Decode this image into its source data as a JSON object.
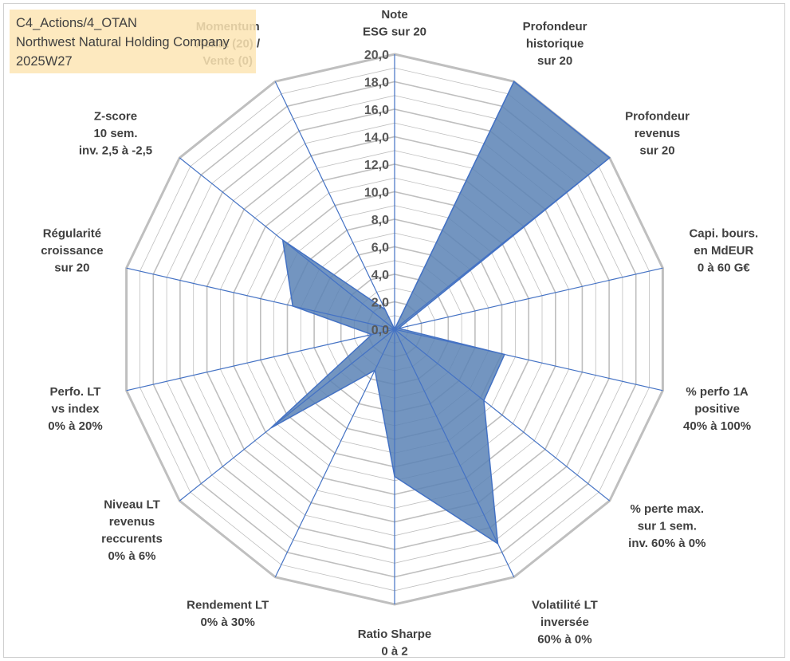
{
  "title_lines": [
    "C4_Actions/4_OTAN",
    "Northwest Natural Holding Company",
    "2025W27"
  ],
  "chart_data": {
    "type": "radar",
    "scale": [
      0,
      20
    ],
    "ticks": [
      "0,0",
      "2,0",
      "4,0",
      "6,0",
      "8,0",
      "10,0",
      "12,0",
      "14,0",
      "16,0",
      "18,0",
      "20,0"
    ],
    "categories": [
      [
        "Note",
        "ESG sur 20"
      ],
      [
        "Profondeur",
        "historique",
        "sur 20"
      ],
      [
        "Profondeur",
        "revenus",
        "sur 20"
      ],
      [
        "Capi. bours.",
        "en MdEUR",
        "0 à 60 G€"
      ],
      [
        "% perfo 1A",
        "positive",
        "40% à 100%"
      ],
      [
        "% perte max.",
        "sur 1 sem.",
        "inv. 60% à 0%"
      ],
      [
        "Volatilité LT",
        "inversée",
        "60% à 0%"
      ],
      [
        "Ratio Sharpe",
        "0 à 2"
      ],
      [
        "Rendement LT",
        "0% à 30%"
      ],
      [
        "Niveau LT",
        "revenus",
        "reccurents",
        "0% à 6%"
      ],
      [
        "Perfo. LT",
        "vs index",
        "0% à 20%"
      ],
      [
        "Régularité",
        "croissance",
        "sur 20"
      ],
      [
        "Z-score",
        "10 sem.",
        "inv. 2,5 à -2,5"
      ],
      [
        "Momentum",
        "Achat (20) /",
        "Vente (0)"
      ]
    ],
    "values": [
      0,
      20,
      20,
      0.3,
      8.2,
      8.3,
      17.3,
      10.7,
      3.3,
      11.5,
      1.7,
      7.6,
      10.4,
      1.6
    ],
    "colors": {
      "fill": "#5B83B5",
      "stroke": "#4472C4",
      "grid": "#BFBFBF",
      "spoke": "#4472C4"
    }
  }
}
